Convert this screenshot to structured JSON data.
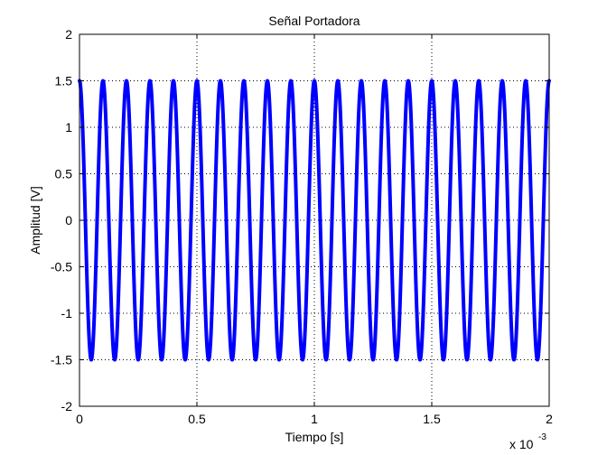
{
  "chart_data": {
    "type": "line",
    "title": "Señal Portadora",
    "xlabel": "Tiempo [s]",
    "ylabel": "Amplitud [V]",
    "x_scale_label": "x 10",
    "x_scale_exponent": "-3",
    "xlim": [
      0,
      2
    ],
    "ylim": [
      -2,
      2
    ],
    "x_ticks": [
      0,
      0.5,
      1,
      1.5,
      2
    ],
    "x_tick_labels": [
      "0",
      "0.5",
      "1",
      "1.5",
      "2"
    ],
    "y_ticks": [
      -2,
      -1.5,
      -1,
      -0.5,
      0,
      0.5,
      1,
      1.5,
      2
    ],
    "y_tick_labels": [
      "-2",
      "-1.5",
      "-1",
      "-0.5",
      "0",
      "0.5",
      "1",
      "1.5",
      "2"
    ],
    "grid": true,
    "series": [
      {
        "function": "cosine",
        "amplitude": 1.5,
        "frequency_cycles_per_unit": 10,
        "color": "#0000ff"
      }
    ]
  }
}
